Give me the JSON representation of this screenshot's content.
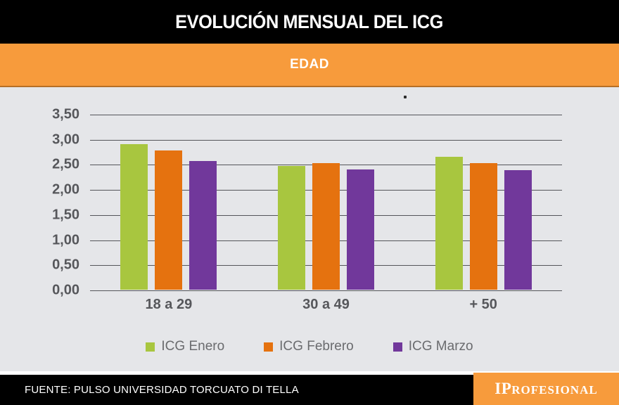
{
  "header": {
    "title": "EVOLUCIÓN MENSUAL DEL ICG",
    "subtitle": "EDAD"
  },
  "chart_data": {
    "type": "bar",
    "title": "EVOLUCIÓN MENSUAL DEL ICG",
    "subtitle": "EDAD",
    "categories": [
      "18 a 29",
      "30 a 49",
      "+ 50"
    ],
    "series": [
      {
        "name": "ICG Enero",
        "color": "#A8C63F",
        "values": [
          2.9,
          2.47,
          2.64
        ]
      },
      {
        "name": "ICG Febrero",
        "color": "#E5720F",
        "values": [
          2.77,
          2.52,
          2.52
        ]
      },
      {
        "name": "ICG Marzo",
        "color": "#71389B",
        "values": [
          2.56,
          2.4,
          2.38
        ]
      }
    ],
    "ylim": [
      0,
      3.5
    ],
    "yticks": [
      {
        "value": 3.5,
        "label": "3,50"
      },
      {
        "value": 3.0,
        "label": "3,00"
      },
      {
        "value": 2.5,
        "label": "2,50"
      },
      {
        "value": 2.0,
        "label": "2,00"
      },
      {
        "value": 1.5,
        "label": "1,50"
      },
      {
        "value": 1.0,
        "label": "1,00"
      },
      {
        "value": 0.5,
        "label": "0,50"
      },
      {
        "value": 0.0,
        "label": "0,00"
      }
    ],
    "grid": true,
    "legend_position": "bottom",
    "xlabel": "",
    "ylabel": ""
  },
  "footer": {
    "source": "FUENTE: PULSO UNIVERSIDAD TORCUATO DI TELLA",
    "brand_prefix": "IP",
    "brand_rest": "ROFESIONAL"
  },
  "colors": {
    "banner_orange": "#F79B3C",
    "chart_bg": "#E5E6E9",
    "grid_gray": "#54555A",
    "label_gray": "#56575B",
    "legend_gray": "#6A6B6E",
    "header_black": "#000000",
    "text_white": "#FFFFFF"
  }
}
